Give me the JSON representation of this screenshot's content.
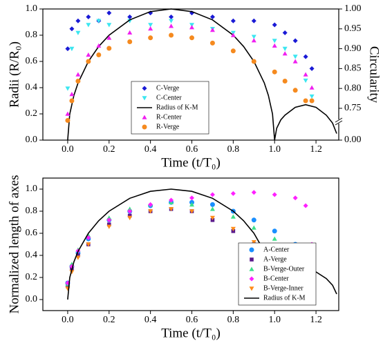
{
  "chart_data": [
    {
      "type": "scatter",
      "xlabel": "Time (t/T₀)",
      "ylabel": "Radii (R/R₀)",
      "y2label": "Circularity",
      "xlim": [
        -0.12,
        1.31
      ],
      "ylim": [
        0,
        1
      ],
      "y2lim": [
        0.67,
        1.0
      ],
      "xticks": [
        {
          "value": 0,
          "label": "0.0"
        },
        {
          "value": 0.2,
          "label": "0.2"
        },
        {
          "value": 0.4,
          "label": "0.4"
        },
        {
          "value": 0.6,
          "label": "0.6"
        },
        {
          "value": 0.8,
          "label": "0.8"
        },
        {
          "value": 1,
          "label": "1.0"
        },
        {
          "value": 1.2,
          "label": "1.2"
        }
      ],
      "yticks": [
        {
          "value": 0,
          "label": "0.0"
        },
        {
          "value": 0.2,
          "label": "0.2"
        },
        {
          "value": 0.4,
          "label": "0.4"
        },
        {
          "value": 0.6,
          "label": "0.6"
        },
        {
          "value": 0.8,
          "label": "0.8"
        },
        {
          "value": 1,
          "label": "1.0"
        }
      ],
      "y2ticks": [
        {
          "value": 0.75,
          "label": "0.75"
        },
        {
          "value": 0.8,
          "label": "0.80"
        },
        {
          "value": 0.85,
          "label": "0.85"
        },
        {
          "value": 0.9,
          "label": "0.90"
        },
        {
          "value": 0.95,
          "label": "0.95"
        },
        {
          "value": 1,
          "label": "1.00"
        }
      ],
      "y2_break_tick": {
        "value": 0,
        "label": "0.00"
      },
      "x": [
        0.0,
        0.02,
        0.05,
        0.1,
        0.15,
        0.2,
        0.3,
        0.4,
        0.5,
        0.6,
        0.7,
        0.8,
        0.9,
        1.0,
        1.05,
        1.1,
        1.15,
        1.18
      ],
      "series": [
        {
          "name": "C-Verge",
          "color": "#1a1ad6",
          "marker": "diamond",
          "axis": "y2",
          "values": [
            0.9,
            0.95,
            0.97,
            0.98,
            0.97,
            0.99,
            0.98,
            0.99,
            0.98,
            0.99,
            0.98,
            0.97,
            0.97,
            0.96,
            0.94,
            0.92,
            0.88,
            0.85
          ]
        },
        {
          "name": "C-Center",
          "color": "#3ce6f0",
          "marker": "triangle-down",
          "axis": "y2",
          "values": [
            0.8,
            0.9,
            0.94,
            0.96,
            0.97,
            0.96,
            0.97,
            0.96,
            0.97,
            0.96,
            0.95,
            0.94,
            0.93,
            0.92,
            0.9,
            0.88,
            0.82,
            0.78
          ]
        },
        {
          "name": "Radius of K-M",
          "color": "#000000",
          "marker": "line",
          "x": [
            0,
            0.01,
            0.03,
            0.05,
            0.1,
            0.15,
            0.2,
            0.3,
            0.4,
            0.5,
            0.6,
            0.7,
            0.8,
            0.85,
            0.9,
            0.95,
            0.97,
            0.99,
            1.0,
            1.01,
            1.03,
            1.05,
            1.1,
            1.15,
            1.2,
            1.25,
            1.28,
            1.3
          ],
          "values": [
            0,
            0.199,
            0.341,
            0.436,
            0.6,
            0.714,
            0.8,
            0.917,
            0.98,
            1,
            0.98,
            0.917,
            0.8,
            0.714,
            0.6,
            0.436,
            0.341,
            0.199,
            0,
            0.09,
            0.155,
            0.19,
            0.25,
            0.27,
            0.25,
            0.19,
            0.13,
            0.05
          ]
        },
        {
          "name": "R-Center",
          "color": "#f020f0",
          "marker": "triangle-up",
          "values": [
            0.2,
            0.35,
            0.5,
            0.65,
            0.72,
            0.78,
            0.82,
            0.85,
            0.87,
            0.86,
            0.84,
            0.8,
            0.76,
            0.72,
            0.66,
            0.6,
            0.5,
            0.4
          ]
        },
        {
          "name": "R-Verge",
          "color": "#f58a1f",
          "marker": "circle",
          "values": [
            0.15,
            0.3,
            0.45,
            0.6,
            0.65,
            0.7,
            0.75,
            0.78,
            0.8,
            0.78,
            0.74,
            0.68,
            0.6,
            0.52,
            0.45,
            0.38,
            0.3,
            0.3
          ]
        }
      ]
    },
    {
      "type": "scatter",
      "xlabel": "Time (t/T₀)",
      "ylabel": "Normalized length of axes",
      "xlim": [
        -0.12,
        1.31
      ],
      "ylim": [
        -0.1,
        1.1
      ],
      "xticks": [
        {
          "value": 0,
          "label": "0.0"
        },
        {
          "value": 0.2,
          "label": "0.2"
        },
        {
          "value": 0.4,
          "label": "0.4"
        },
        {
          "value": 0.6,
          "label": "0.6"
        },
        {
          "value": 0.8,
          "label": "0.8"
        },
        {
          "value": 1,
          "label": "1.0"
        },
        {
          "value": 1.2,
          "label": "1.2"
        }
      ],
      "yticks": [
        {
          "value": 0,
          "label": "0.0"
        },
        {
          "value": 0.2,
          "label": "0.2"
        },
        {
          "value": 0.4,
          "label": "0.4"
        },
        {
          "value": 0.6,
          "label": "0.6"
        },
        {
          "value": 0.8,
          "label": "0.8"
        },
        {
          "value": 1,
          "label": "1.0"
        }
      ],
      "x": [
        0.0,
        0.02,
        0.05,
        0.1,
        0.2,
        0.3,
        0.4,
        0.5,
        0.6,
        0.7,
        0.8,
        0.9,
        1.0,
        1.1,
        1.15,
        1.18
      ],
      "series": [
        {
          "name": "A-Center",
          "color": "#1a8fff",
          "marker": "circle",
          "values": [
            0.15,
            0.3,
            0.42,
            0.55,
            0.72,
            0.8,
            0.85,
            0.88,
            0.88,
            0.86,
            0.8,
            0.72,
            0.62,
            0.5,
            0.4,
            0.35
          ]
        },
        {
          "name": "A-Verge",
          "color": "#5a1a8c",
          "marker": "square",
          "values": [
            0.12,
            0.28,
            0.4,
            0.5,
            0.68,
            0.76,
            0.8,
            0.82,
            0.8,
            0.72,
            0.62,
            0.5,
            0.42,
            0.35,
            0.3,
            0.28
          ]
        },
        {
          "name": "B-Verge-Outer",
          "color": "#3ee08a",
          "marker": "triangle-up",
          "values": [
            0.14,
            0.32,
            0.45,
            0.58,
            0.74,
            0.82,
            0.86,
            0.88,
            0.86,
            0.82,
            0.75,
            0.65,
            0.55,
            0.45,
            0.38,
            0.3
          ]
        },
        {
          "name": "B-Center",
          "color": "#ff20ff",
          "marker": "diamond",
          "values": [
            0.15,
            0.3,
            0.44,
            0.56,
            0.72,
            0.8,
            0.86,
            0.9,
            0.92,
            0.95,
            0.96,
            0.97,
            0.95,
            0.92,
            0.85,
            0.5
          ]
        },
        {
          "name": "B-Verge-Inner",
          "color": "#ff8c1a",
          "marker": "triangle-down",
          "values": [
            0.1,
            0.25,
            0.38,
            0.5,
            0.66,
            0.74,
            0.8,
            0.82,
            0.8,
            0.74,
            0.64,
            0.52,
            0.4,
            0.32,
            0.28,
            0.25
          ]
        },
        {
          "name": "Radius of K-M",
          "color": "#000000",
          "marker": "line",
          "x": [
            0,
            0.01,
            0.03,
            0.05,
            0.1,
            0.15,
            0.2,
            0.3,
            0.4,
            0.5,
            0.6,
            0.7,
            0.8,
            0.85,
            0.9,
            0.95,
            0.97,
            0.99,
            1.0,
            1.01,
            1.03,
            1.05,
            1.1,
            1.15,
            1.2,
            1.25,
            1.28,
            1.3
          ],
          "values": [
            0,
            0.199,
            0.341,
            0.436,
            0.6,
            0.714,
            0.8,
            0.917,
            0.98,
            1,
            0.98,
            0.917,
            0.8,
            0.714,
            0.6,
            0.436,
            0.341,
            0.199,
            0,
            0.09,
            0.155,
            0.19,
            0.25,
            0.27,
            0.25,
            0.19,
            0.13,
            0.05
          ]
        }
      ]
    }
  ]
}
